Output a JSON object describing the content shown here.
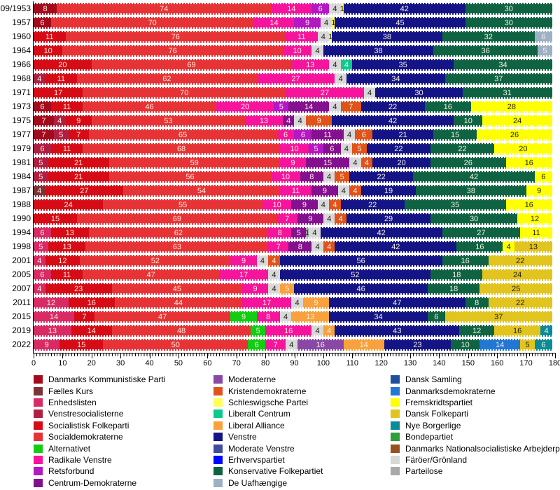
{
  "chart_data": {
    "type": "bar",
    "stacked": true,
    "orientation": "horizontal",
    "description": "Seat distribution in the Danish Folketing by election year",
    "total_seats": 179,
    "x_axis": {
      "min": 0,
      "max": 180,
      "ticks": [
        0,
        10,
        20,
        30,
        40,
        50,
        60,
        70,
        80,
        90,
        100,
        110,
        120,
        130,
        140,
        150,
        160,
        170,
        180
      ]
    },
    "grid": false,
    "legend_position": "bottom",
    "parties": {
      "dkp": {
        "label": "Danmarks Kommunistiske Parti",
        "color": "#a30b1c",
        "text": "light"
      },
      "fk": {
        "label": "Fælles Kurs",
        "color": "#7d3335",
        "text": "light"
      },
      "el": {
        "label": "Enhedslisten",
        "color": "#d92a64",
        "text": "light"
      },
      "vs": {
        "label": "Venstresocialisterne",
        "color": "#b01f42",
        "text": "light"
      },
      "sf": {
        "label": "Socialistisk Folkeparti",
        "color": "#d60b16",
        "text": "light"
      },
      "s": {
        "label": "Socialdemokraterne",
        "color": "#e73336",
        "text": "light"
      },
      "alt": {
        "label": "Alternativet",
        "color": "#12cd12",
        "text": "light"
      },
      "rv": {
        "label": "Radikale Venstre",
        "color": "#f5149b",
        "text": "light"
      },
      "rf": {
        "label": "Retsforbund",
        "color": "#b517c4",
        "text": "light"
      },
      "cd": {
        "label": "Centrum-Demokraterne",
        "color": "#85108f",
        "text": "light"
      },
      "m": {
        "label": "Moderaterne",
        "color": "#8948a5",
        "text": "light"
      },
      "krf": {
        "label": "Kristendemokraterne",
        "color": "#e0531a",
        "text": "light"
      },
      "sp": {
        "label": "Schleswigsche Partei",
        "color": "#ffff55",
        "text": "dark"
      },
      "lc": {
        "label": "Liberalt Centrum",
        "color": "#0cc98e",
        "text": "light"
      },
      "la": {
        "label": "Liberal Alliance",
        "color": "#f9a13c",
        "text": "light"
      },
      "v": {
        "label": "Venstre",
        "color": "#141486",
        "text": "light"
      },
      "mv": {
        "label": "Moderate Venstre",
        "color": "#414d9b",
        "text": "light"
      },
      "ep": {
        "label": "Erhvervspartiet",
        "color": "#0008ff",
        "text": "light"
      },
      "kf": {
        "label": "Konservative Folkepartiet",
        "color": "#0f6343",
        "text": "light"
      },
      "du": {
        "label": "De Uafhængige",
        "color": "#9cb0c6",
        "text": "light"
      },
      "ds": {
        "label": "Dansk Samling",
        "color": "#1f4e9b",
        "text": "light"
      },
      "dd": {
        "label": "Danmarksdemokraterne",
        "color": "#2277d5",
        "text": "light"
      },
      "frp": {
        "label": "Fremskridtspartiet",
        "color": "#ffff00",
        "text": "dark"
      },
      "df": {
        "label": "Dansk Folkeparti",
        "color": "#e2c41e",
        "text": "dark"
      },
      "nb": {
        "label": "Nye Borgerlige",
        "color": "#0b8b99",
        "text": "light"
      },
      "bp": {
        "label": "Bondepartiet",
        "color": "#2f9e3c",
        "text": "light"
      },
      "dnsap": {
        "label": "Danmarks Nationalsocialistiske Arbejderparti",
        "color": "#96511f",
        "text": "light"
      },
      "fg": {
        "label": "Färöer/Grönland",
        "color": "#d8d8d8",
        "text": "dark"
      },
      "pl": {
        "label": "Parteilose",
        "color": "#a9a9a9",
        "text": "dark"
      }
    },
    "rows": [
      {
        "year": "09/1953",
        "segments": [
          [
            "dkp",
            8
          ],
          [
            "s",
            74
          ],
          [
            "rv",
            14
          ],
          [
            "rf",
            6
          ],
          [
            "fg",
            4
          ],
          [
            "sp",
            1
          ],
          [
            "v",
            42
          ],
          [
            "kf",
            30
          ]
        ]
      },
      {
        "year": "1957",
        "segments": [
          [
            "dkp",
            6
          ],
          [
            "s",
            70
          ],
          [
            "rv",
            14
          ],
          [
            "rf",
            9
          ],
          [
            "fg",
            4
          ],
          [
            "sp",
            1
          ],
          [
            "v",
            45
          ],
          [
            "kf",
            30
          ]
        ]
      },
      {
        "year": "1960",
        "segments": [
          [
            "sf",
            11
          ],
          [
            "s",
            76
          ],
          [
            "rv",
            11
          ],
          [
            "fg",
            4
          ],
          [
            "sp",
            1
          ],
          [
            "v",
            38
          ],
          [
            "kf",
            32
          ],
          [
            "du",
            6
          ]
        ]
      },
      {
        "year": "1964",
        "segments": [
          [
            "sf",
            10
          ],
          [
            "s",
            76
          ],
          [
            "rv",
            10
          ],
          [
            "fg",
            4
          ],
          [
            "v",
            38
          ],
          [
            "kf",
            36
          ],
          [
            "du",
            5
          ]
        ]
      },
      {
        "year": "1966",
        "segments": [
          [
            "sf",
            20
          ],
          [
            "s",
            69
          ],
          [
            "rv",
            13
          ],
          [
            "fg",
            4
          ],
          [
            "lc",
            4
          ],
          [
            "v",
            35
          ],
          [
            "kf",
            34
          ]
        ]
      },
      {
        "year": "1968",
        "segments": [
          [
            "vs",
            4
          ],
          [
            "sf",
            11
          ],
          [
            "s",
            62
          ],
          [
            "rv",
            27
          ],
          [
            "fg",
            4
          ],
          [
            "v",
            34
          ],
          [
            "kf",
            37
          ]
        ]
      },
      {
        "year": "1971",
        "segments": [
          [
            "sf",
            17
          ],
          [
            "s",
            70
          ],
          [
            "rv",
            27
          ],
          [
            "fg",
            4
          ],
          [
            "v",
            30
          ],
          [
            "kf",
            31
          ]
        ]
      },
      {
        "year": "1973",
        "segments": [
          [
            "dkp",
            6
          ],
          [
            "sf",
            11
          ],
          [
            "s",
            46
          ],
          [
            "rv",
            20
          ],
          [
            "rf",
            5
          ],
          [
            "cd",
            14
          ],
          [
            "fg",
            4
          ],
          [
            "krf",
            7
          ],
          [
            "v",
            22
          ],
          [
            "kf",
            16
          ],
          [
            "frp",
            28
          ]
        ]
      },
      {
        "year": "1975",
        "segments": [
          [
            "dkp",
            7
          ],
          [
            "vs",
            4
          ],
          [
            "sf",
            9
          ],
          [
            "s",
            53
          ],
          [
            "rv",
            13
          ],
          [
            "cd",
            4
          ],
          [
            "fg",
            4
          ],
          [
            "krf",
            9
          ],
          [
            "v",
            42
          ],
          [
            "kf",
            10
          ],
          [
            "frp",
            24
          ]
        ]
      },
      {
        "year": "1977",
        "segments": [
          [
            "dkp",
            7
          ],
          [
            "vs",
            5
          ],
          [
            "sf",
            7
          ],
          [
            "s",
            65
          ],
          [
            "rv",
            6
          ],
          [
            "rf",
            6
          ],
          [
            "cd",
            11
          ],
          [
            "fg",
            4
          ],
          [
            "krf",
            6
          ],
          [
            "v",
            21
          ],
          [
            "kf",
            15
          ],
          [
            "frp",
            26
          ]
        ]
      },
      {
        "year": "1979",
        "segments": [
          [
            "vs",
            6
          ],
          [
            "sf",
            11
          ],
          [
            "s",
            68
          ],
          [
            "rv",
            10
          ],
          [
            "rf",
            5
          ],
          [
            "cd",
            6
          ],
          [
            "fg",
            4
          ],
          [
            "krf",
            5
          ],
          [
            "v",
            22
          ],
          [
            "kf",
            22
          ],
          [
            "frp",
            20
          ]
        ]
      },
      {
        "year": "1981",
        "segments": [
          [
            "vs",
            5
          ],
          [
            "sf",
            21
          ],
          [
            "s",
            59
          ],
          [
            "rv",
            9
          ],
          [
            "cd",
            15
          ],
          [
            "fg",
            4
          ],
          [
            "krf",
            4
          ],
          [
            "v",
            20
          ],
          [
            "kf",
            26
          ],
          [
            "frp",
            16
          ]
        ]
      },
      {
        "year": "1984",
        "segments": [
          [
            "vs",
            5
          ],
          [
            "sf",
            21
          ],
          [
            "s",
            56
          ],
          [
            "rv",
            10
          ],
          [
            "cd",
            8
          ],
          [
            "fg",
            4
          ],
          [
            "krf",
            5
          ],
          [
            "v",
            22
          ],
          [
            "kf",
            42
          ],
          [
            "frp",
            6
          ]
        ]
      },
      {
        "year": "1987",
        "segments": [
          [
            "fk",
            4
          ],
          [
            "sf",
            27
          ],
          [
            "s",
            54
          ],
          [
            "rv",
            11
          ],
          [
            "cd",
            9
          ],
          [
            "fg",
            4
          ],
          [
            "krf",
            4
          ],
          [
            "v",
            19
          ],
          [
            "kf",
            38
          ],
          [
            "frp",
            9
          ]
        ]
      },
      {
        "year": "1988",
        "segments": [
          [
            "sf",
            24
          ],
          [
            "s",
            55
          ],
          [
            "rv",
            10
          ],
          [
            "cd",
            9
          ],
          [
            "fg",
            4
          ],
          [
            "krf",
            4
          ],
          [
            "v",
            22
          ],
          [
            "kf",
            35
          ],
          [
            "frp",
            16
          ]
        ]
      },
      {
        "year": "1990",
        "segments": [
          [
            "sf",
            15
          ],
          [
            "s",
            69
          ],
          [
            "rv",
            7
          ],
          [
            "cd",
            9
          ],
          [
            "fg",
            4
          ],
          [
            "krf",
            4
          ],
          [
            "v",
            29
          ],
          [
            "kf",
            30
          ],
          [
            "frp",
            12
          ]
        ]
      },
      {
        "year": "1994",
        "segments": [
          [
            "el",
            6
          ],
          [
            "sf",
            13
          ],
          [
            "s",
            62
          ],
          [
            "rv",
            8
          ],
          [
            "cd",
            5
          ],
          [
            "pl",
            1
          ],
          [
            "fg",
            4
          ],
          [
            "v",
            42
          ],
          [
            "kf",
            27
          ],
          [
            "frp",
            11
          ]
        ]
      },
      {
        "year": "1998",
        "segments": [
          [
            "el",
            5
          ],
          [
            "sf",
            13
          ],
          [
            "s",
            63
          ],
          [
            "rv",
            7
          ],
          [
            "cd",
            8
          ],
          [
            "fg",
            4
          ],
          [
            "krf",
            4
          ],
          [
            "v",
            42
          ],
          [
            "kf",
            16
          ],
          [
            "frp",
            4
          ],
          [
            "df",
            13
          ]
        ]
      },
      {
        "year": "2001",
        "segments": [
          [
            "el",
            4
          ],
          [
            "sf",
            12
          ],
          [
            "s",
            52
          ],
          [
            "rv",
            9
          ],
          [
            "fg",
            4
          ],
          [
            "krf",
            4
          ],
          [
            "v",
            56
          ],
          [
            "kf",
            16
          ],
          [
            "df",
            22
          ]
        ]
      },
      {
        "year": "2005",
        "segments": [
          [
            "el",
            6
          ],
          [
            "sf",
            11
          ],
          [
            "s",
            47
          ],
          [
            "rv",
            17
          ],
          [
            "fg",
            4
          ],
          [
            "v",
            52
          ],
          [
            "kf",
            18
          ],
          [
            "df",
            24
          ]
        ]
      },
      {
        "year": "2007",
        "segments": [
          [
            "el",
            4
          ],
          [
            "sf",
            23
          ],
          [
            "s",
            45
          ],
          [
            "rv",
            9
          ],
          [
            "fg",
            4
          ],
          [
            "la",
            5
          ],
          [
            "v",
            46
          ],
          [
            "kf",
            18
          ],
          [
            "df",
            25
          ]
        ]
      },
      {
        "year": "2011",
        "segments": [
          [
            "el",
            12
          ],
          [
            "sf",
            16
          ],
          [
            "s",
            44
          ],
          [
            "rv",
            17
          ],
          [
            "fg",
            4
          ],
          [
            "la",
            9
          ],
          [
            "v",
            47
          ],
          [
            "kf",
            8
          ],
          [
            "df",
            22
          ]
        ]
      },
      {
        "year": "2015",
        "segments": [
          [
            "el",
            14
          ],
          [
            "sf",
            7
          ],
          [
            "s",
            47
          ],
          [
            "alt",
            9
          ],
          [
            "rv",
            8
          ],
          [
            "fg",
            4
          ],
          [
            "la",
            13
          ],
          [
            "v",
            34
          ],
          [
            "kf",
            6
          ],
          [
            "df",
            37
          ]
        ]
      },
      {
        "year": "2019",
        "segments": [
          [
            "el",
            13
          ],
          [
            "sf",
            14
          ],
          [
            "s",
            48
          ],
          [
            "alt",
            5
          ],
          [
            "rv",
            16
          ],
          [
            "fg",
            4
          ],
          [
            "la",
            4
          ],
          [
            "v",
            43
          ],
          [
            "kf",
            12
          ],
          [
            "df",
            16
          ],
          [
            "nb",
            4
          ]
        ]
      },
      {
        "year": "2022",
        "segments": [
          [
            "el",
            9
          ],
          [
            "sf",
            15
          ],
          [
            "s",
            50
          ],
          [
            "alt",
            6
          ],
          [
            "rv",
            7
          ],
          [
            "fg",
            4
          ],
          [
            "m",
            16
          ],
          [
            "la",
            14
          ],
          [
            "v",
            23
          ],
          [
            "kf",
            10
          ],
          [
            "dd",
            14
          ],
          [
            "df",
            5
          ],
          [
            "nb",
            6
          ]
        ]
      }
    ],
    "legend_columns": [
      [
        "dkp",
        "fk",
        "el",
        "vs",
        "sf",
        "s",
        "alt",
        "rv",
        "rf",
        "cd"
      ],
      [
        "m",
        "krf",
        "sp",
        "lc",
        "la",
        "v",
        "mv",
        "ep",
        "kf",
        "du"
      ],
      [
        "ds",
        "dd",
        "frp",
        "df",
        "nb",
        "bp",
        "dnsap",
        "fg",
        "pl"
      ]
    ]
  }
}
